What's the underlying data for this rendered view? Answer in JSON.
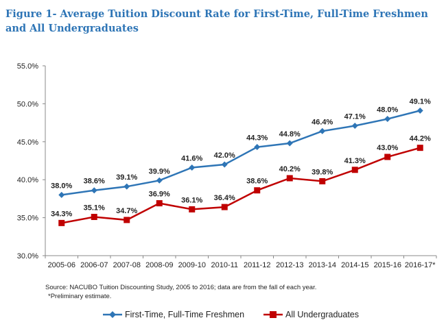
{
  "title": "Figure 1- Average Tuition Discount Rate for First-Time, Full-Time Freshmen and All Undergraduates",
  "source_note": "Source: NACUBO Tuition Discounting Study, 2005 to 2016; data are from the fall of each year.",
  "footnote": "*Preliminary estimate.",
  "chart_data": {
    "type": "line",
    "categories": [
      "2005-06",
      "2006-07",
      "2007-08",
      "2008-09",
      "2009-10",
      "2010-11",
      "2011-12",
      "2012-13",
      "2013-14",
      "2014-15",
      "2015-16",
      "2016-17*"
    ],
    "series": [
      {
        "name": "First-Time, Full-Time Freshmen",
        "color": "#2e75b6",
        "marker": "diamond",
        "values": [
          38.0,
          38.6,
          39.1,
          39.9,
          41.6,
          42.0,
          44.3,
          44.8,
          46.4,
          47.1,
          48.0,
          49.1
        ],
        "labels": [
          "38.0%",
          "38.6%",
          "39.1%",
          "39.9%",
          "41.6%",
          "42.0%",
          "44.3%",
          "44.8%",
          "46.4%",
          "47.1%",
          "48.0%",
          "49.1%"
        ]
      },
      {
        "name": "All Undergraduates",
        "color": "#c00000",
        "marker": "square",
        "values": [
          34.3,
          35.1,
          34.7,
          36.9,
          36.1,
          36.4,
          38.6,
          40.2,
          39.8,
          41.3,
          43.0,
          44.2
        ],
        "labels": [
          "34.3%",
          "35.1%",
          "34.7%",
          "36.9%",
          "36.1%",
          "36.4%",
          "38.6%",
          "40.2%",
          "39.8%",
          "41.3%",
          "43.0%",
          "44.2%"
        ]
      }
    ],
    "ylim": [
      30,
      55
    ],
    "yticks": [
      30,
      35,
      40,
      45,
      50,
      55
    ],
    "ytick_labels": [
      "30.0%",
      "35.0%",
      "40.0%",
      "45.0%",
      "50.0%",
      "55.0%"
    ],
    "grid": false,
    "legend_position": "bottom"
  }
}
